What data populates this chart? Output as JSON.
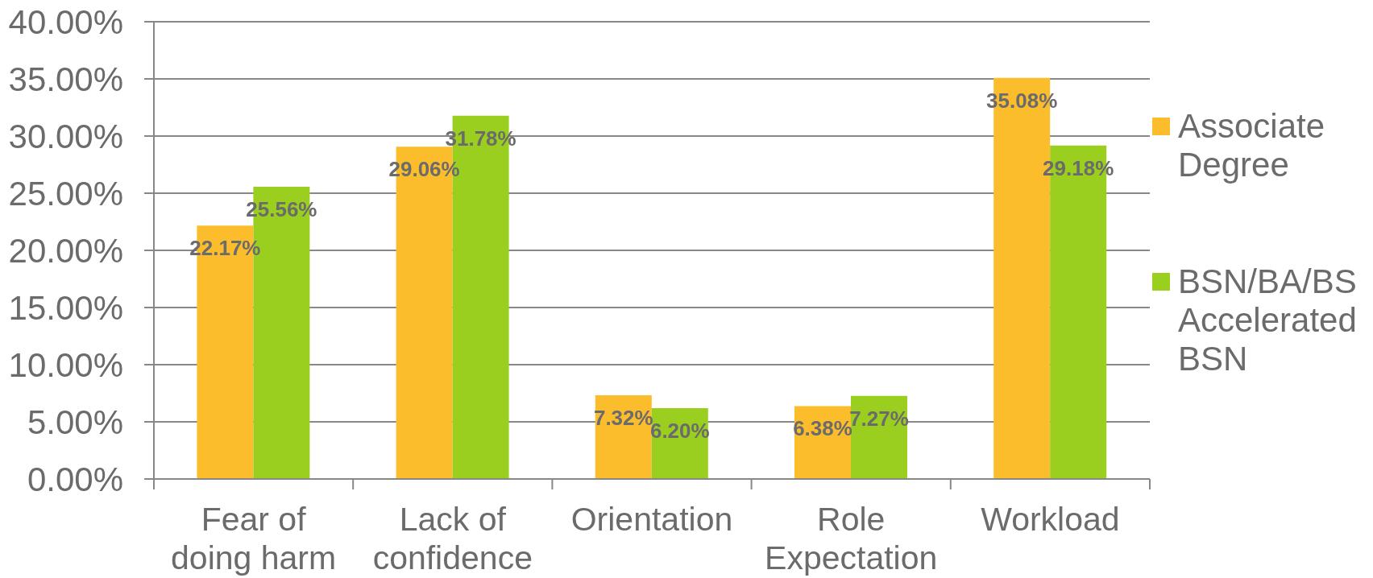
{
  "chart_data": {
    "type": "bar",
    "categories": [
      "Fear of doing harm",
      "Lack of confidence",
      "Orientation",
      "Role Expectation",
      "Workload"
    ],
    "series": [
      {
        "name": "Associate Degree",
        "color": "#fcbd2d",
        "values": [
          22.17,
          29.06,
          7.32,
          6.38,
          35.08
        ],
        "value_labels": [
          "22.17%",
          "29.06%",
          "7.32%",
          "6.38%",
          "35.08%"
        ]
      },
      {
        "name": "BSN/BA/BS Accelerated BSN",
        "color": "#9bcf1f",
        "values": [
          25.56,
          31.78,
          6.2,
          7.27,
          29.18
        ],
        "value_labels": [
          "25.56%",
          "31.78%",
          "6.20%",
          "7.27%",
          "29.18%"
        ]
      }
    ],
    "ylim": [
      0,
      40
    ],
    "yticks": [
      {
        "value": 0,
        "label": "0.00%"
      },
      {
        "value": 5,
        "label": "5.00%"
      },
      {
        "value": 10,
        "label": "10.00%"
      },
      {
        "value": 15,
        "label": "15.00%"
      },
      {
        "value": 20,
        "label": "20.00%"
      },
      {
        "value": 25,
        "label": "25.00%"
      },
      {
        "value": 30,
        "label": "30.00%"
      },
      {
        "value": 35,
        "label": "35.00%"
      },
      {
        "value": 40,
        "label": "40.00%"
      }
    ],
    "grid": "y",
    "legend": "right"
  }
}
